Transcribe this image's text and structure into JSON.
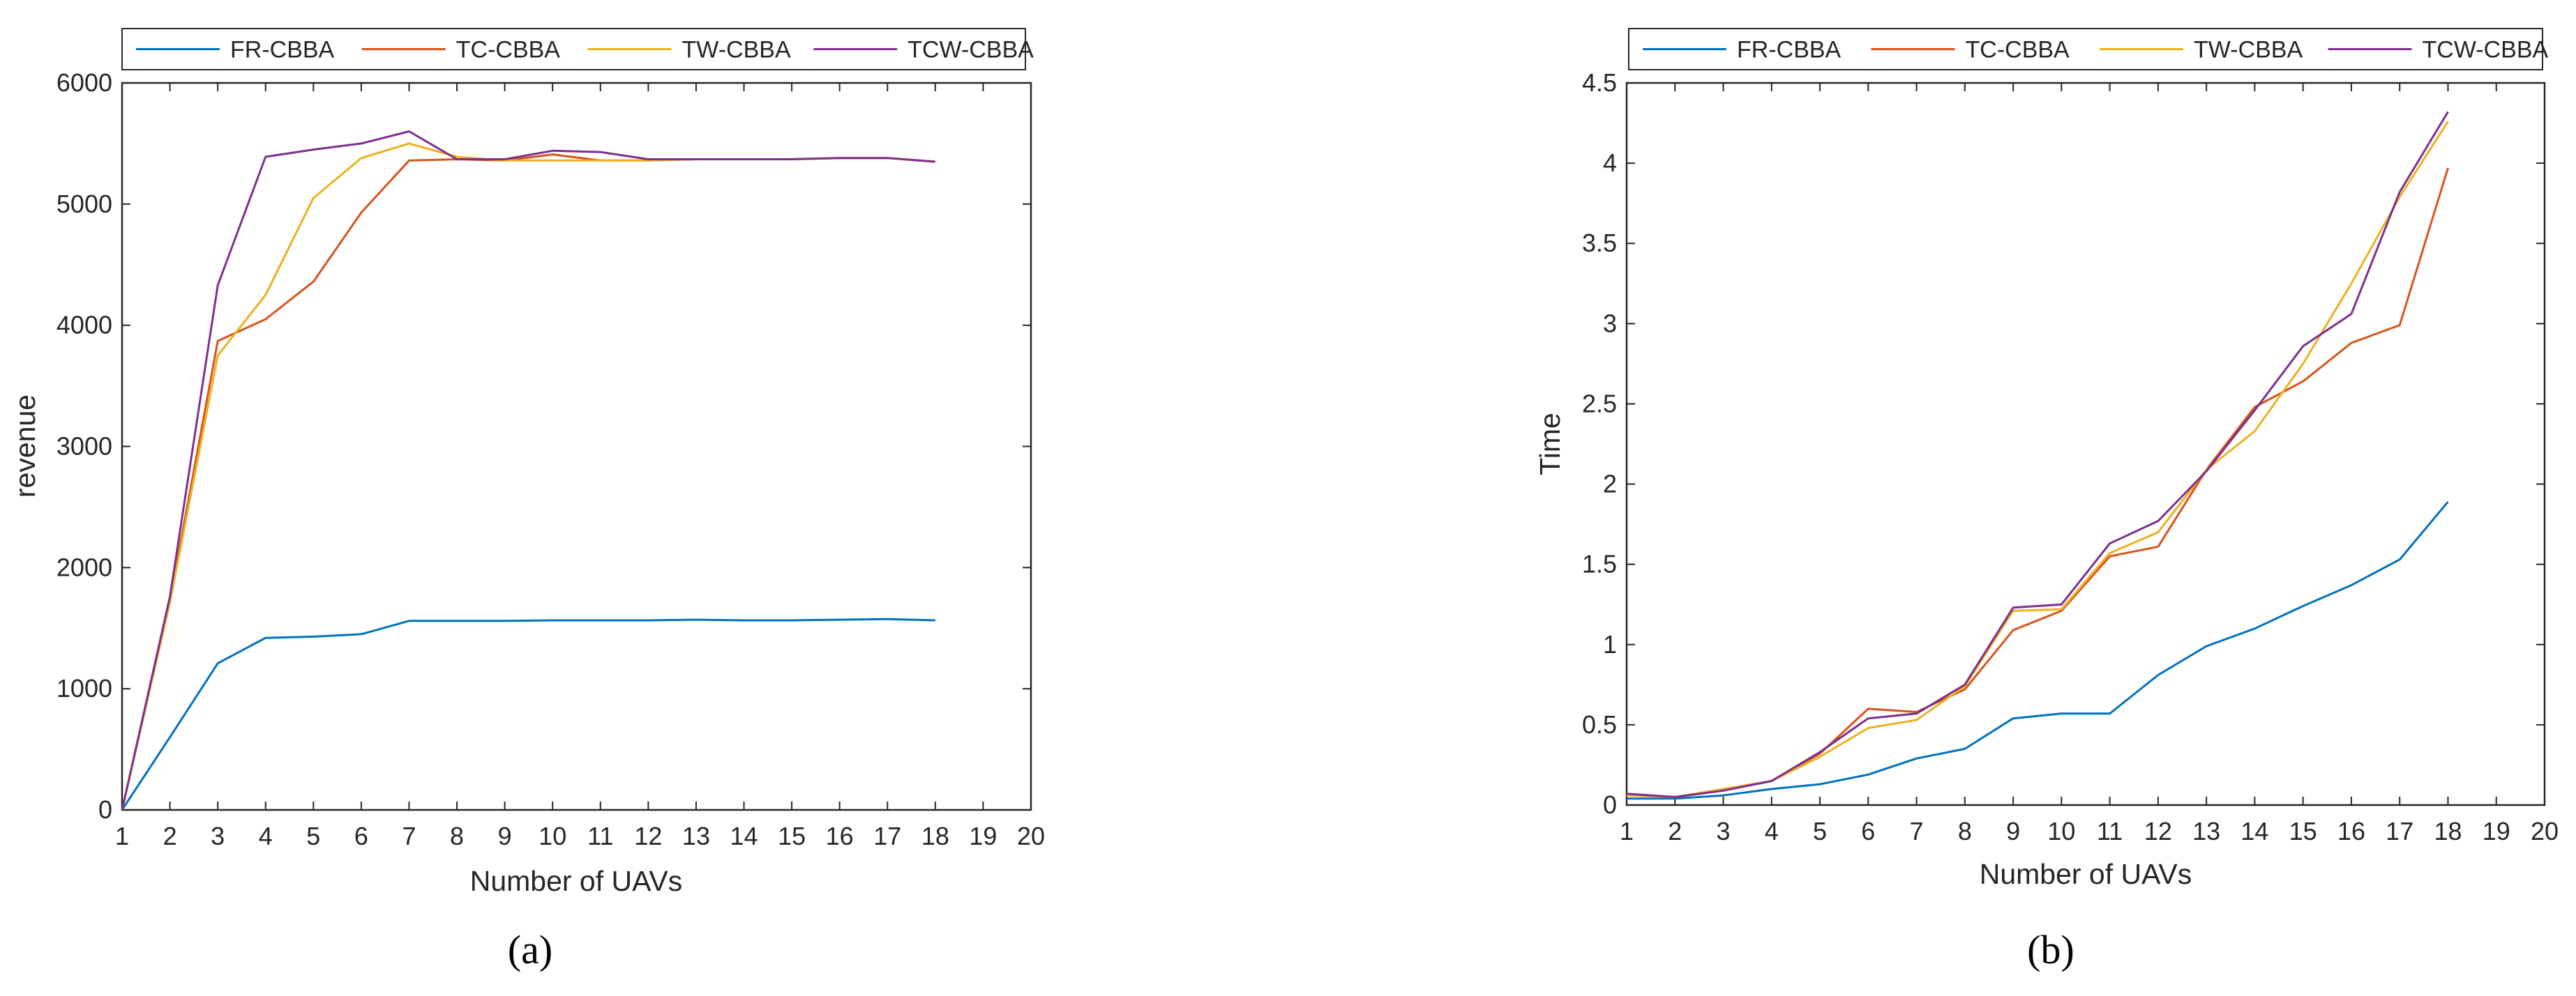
{
  "chart_data": [
    {
      "type": "line",
      "caption": "(a)",
      "xlabel": "Number of UAVs",
      "ylabel": "revenue",
      "xlim": [
        1,
        20
      ],
      "ylim": [
        0,
        6000
      ],
      "xticks": [
        1,
        2,
        3,
        4,
        5,
        6,
        7,
        8,
        9,
        10,
        11,
        12,
        13,
        14,
        15,
        16,
        17,
        18,
        19,
        20
      ],
      "yticks": [
        0,
        1000,
        2000,
        3000,
        4000,
        5000,
        6000
      ],
      "legend": "top",
      "x": [
        1,
        2,
        3,
        4,
        5,
        6,
        7,
        8,
        9,
        10,
        11,
        12,
        13,
        14,
        15,
        16,
        17,
        18
      ],
      "series": [
        {
          "name": "FR-CBBA",
          "color": "#0072BD",
          "values": [
            0,
            600,
            1210,
            1420,
            1430,
            1450,
            1560,
            1560,
            1560,
            1565,
            1565,
            1565,
            1570,
            1565,
            1565,
            1570,
            1575,
            1565
          ]
        },
        {
          "name": "TC-CBBA",
          "color": "#D95319",
          "values": [
            0,
            1730,
            3870,
            4050,
            4360,
            4930,
            5360,
            5370,
            5360,
            5410,
            5360,
            5360,
            5370,
            5370,
            5370,
            5380,
            5380,
            5350
          ]
        },
        {
          "name": "TW-CBBA",
          "color": "#EDB120",
          "values": [
            0,
            1710,
            3750,
            4250,
            5050,
            5380,
            5500,
            5390,
            5360,
            5360,
            5360,
            5360,
            5370,
            5370,
            5370,
            5380,
            5380,
            5350
          ]
        },
        {
          "name": "TCW-CBBA",
          "color": "#7E2F8E",
          "values": [
            0,
            1760,
            4330,
            5390,
            5450,
            5500,
            5600,
            5370,
            5370,
            5440,
            5430,
            5370,
            5370,
            5370,
            5370,
            5380,
            5380,
            5350
          ]
        }
      ]
    },
    {
      "type": "line",
      "caption": "(b)",
      "xlabel": "Number of UAVs",
      "ylabel": "Time",
      "xlim": [
        1,
        20
      ],
      "ylim": [
        0,
        4.5
      ],
      "xticks": [
        1,
        2,
        3,
        4,
        5,
        6,
        7,
        8,
        9,
        10,
        11,
        12,
        13,
        14,
        15,
        16,
        17,
        18,
        19,
        20
      ],
      "yticks": [
        0,
        0.5,
        1,
        1.5,
        2,
        2.5,
        3,
        3.5,
        4,
        4.5
      ],
      "legend": "top",
      "x": [
        1,
        2,
        3,
        4,
        5,
        6,
        7,
        8,
        9,
        10,
        11,
        12,
        13,
        14,
        15,
        16,
        17,
        18
      ],
      "series": [
        {
          "name": "FR-CBBA",
          "color": "#0072BD",
          "values": [
            0.04,
            0.04,
            0.06,
            0.1,
            0.13,
            0.19,
            0.29,
            0.35,
            0.54,
            0.57,
            0.57,
            0.81,
            0.99,
            1.1,
            1.24,
            1.37,
            1.53,
            1.89
          ]
        },
        {
          "name": "TC-CBBA",
          "color": "#D95319",
          "values": [
            0.07,
            0.05,
            0.09,
            0.15,
            0.32,
            0.6,
            0.58,
            0.72,
            1.09,
            1.21,
            1.55,
            1.61,
            2.09,
            2.48,
            2.64,
            2.88,
            2.99,
            3.97
          ]
        },
        {
          "name": "TW-CBBA",
          "color": "#EDB120",
          "values": [
            0.06,
            0.05,
            0.1,
            0.15,
            0.3,
            0.48,
            0.53,
            0.74,
            1.21,
            1.22,
            1.57,
            1.7,
            2.09,
            2.33,
            2.75,
            3.25,
            3.79,
            4.26
          ]
        },
        {
          "name": "TCW-CBBA",
          "color": "#7E2F8E",
          "values": [
            0.07,
            0.05,
            0.09,
            0.15,
            0.33,
            0.54,
            0.57,
            0.75,
            1.23,
            1.25,
            1.63,
            1.77,
            2.08,
            2.46,
            2.86,
            3.06,
            3.82,
            4.32
          ]
        }
      ]
    }
  ]
}
